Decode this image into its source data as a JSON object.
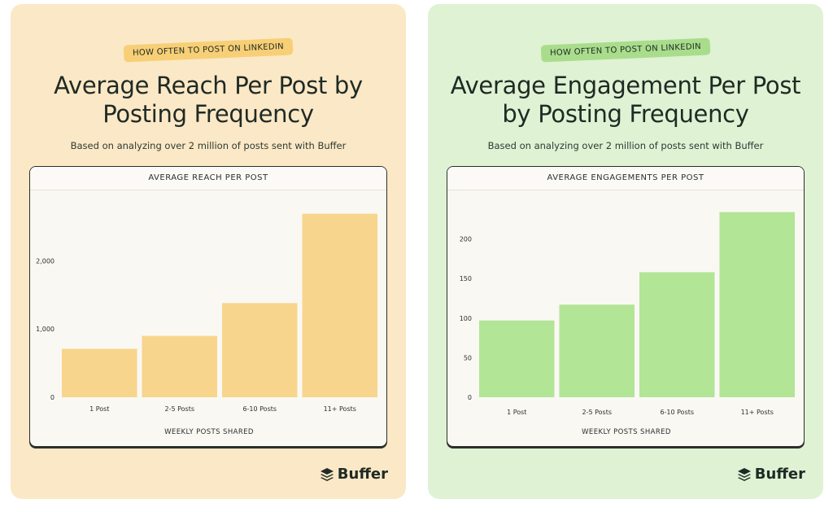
{
  "cards": [
    {
      "pill": "HOW OFTEN TO POST ON LINKEDIN",
      "title": "Average Reach Per Post by Posting Frequency",
      "subtitle": "Based on analyzing over 2 million of posts sent with Buffer",
      "chart_header": "AVERAGE REACH PER POST",
      "logo_text": "Buffer"
    },
    {
      "pill": "HOW OFTEN TO POST ON LINKEDIN",
      "title": "Average Engagement Per Post by Posting Frequency",
      "subtitle": "Based on analyzing over 2 million of posts sent with Buffer",
      "chart_header": "AVERAGE ENGAGEMENTS PER POST",
      "logo_text": "Buffer"
    }
  ],
  "colors": {
    "left_card_bg": "#fbe8c6",
    "right_card_bg": "#dff2d4",
    "reach_bar": "#f7d58d",
    "engagement_bar": "#b2e596"
  },
  "chart_data": [
    {
      "type": "bar",
      "title": "AVERAGE REACH PER POST",
      "categories": [
        "1 Post",
        "2-5 Posts",
        "6-10 Posts",
        "11+ Posts"
      ],
      "values": [
        710,
        900,
        1380,
        2690
      ],
      "xlabel": "WEEKLY POSTS SHARED",
      "ylabel": "",
      "ylim": [
        0,
        2900
      ],
      "yticks": [
        0,
        1000,
        2000
      ],
      "ytick_labels": [
        "0",
        "1,000",
        "2,000"
      ],
      "grid": false
    },
    {
      "type": "bar",
      "title": "AVERAGE ENGAGEMENTS PER POST",
      "categories": [
        "1 Post",
        "2-5 Posts",
        "6-10 Posts",
        "11+ Posts"
      ],
      "values": [
        97,
        117,
        158,
        234
      ],
      "xlabel": "WEEKLY POSTS SHARED",
      "ylabel": "",
      "ylim": [
        0,
        250
      ],
      "yticks": [
        0,
        50,
        100,
        150,
        200
      ],
      "ytick_labels": [
        "0",
        "50",
        "100",
        "150",
        "200"
      ],
      "grid": false
    }
  ]
}
